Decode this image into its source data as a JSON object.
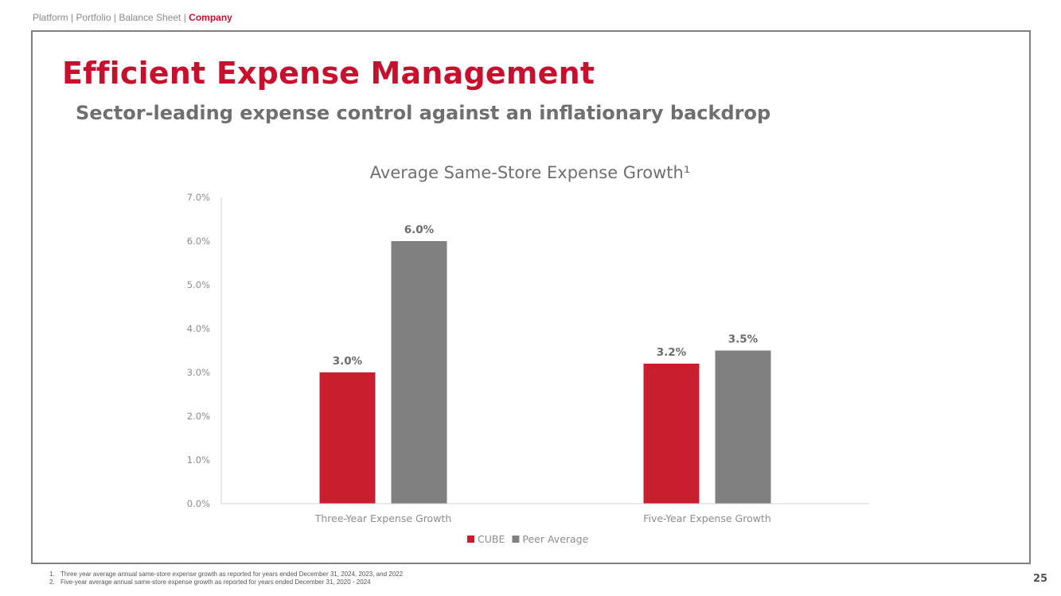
{
  "breadcrumb": {
    "items": [
      "Platform",
      "Portfolio",
      "Balance Sheet",
      "Company"
    ],
    "active_index": 3
  },
  "slide": {
    "title": "Efficient Expense Management",
    "subtitle": "Sector-leading expense control against an inflationary backdrop",
    "page_number": "25"
  },
  "footnotes": [
    {
      "num": "1.",
      "text": "Three year average annual same-store expense growth as reported for years ended December 31, 2024, 2023, and 2022"
    },
    {
      "num": "2.",
      "text": "Five-year average annual same-store expense growth as reported for years ended December 31, 2020 - 2024"
    }
  ],
  "colors": {
    "accent": "#c8102e",
    "cube": "#c81e2e",
    "peer": "#808080",
    "frame": "#7f7f7f",
    "text_gray": "#6b6b6b"
  },
  "chart_data": {
    "type": "bar",
    "title": "Average Same-Store Expense Growth¹",
    "categories": [
      "Three-Year Expense Growth",
      "Five-Year Expense Growth"
    ],
    "series": [
      {
        "name": "CUBE",
        "values": [
          3.0,
          3.2
        ],
        "labels": [
          "3.0%",
          "3.2%"
        ],
        "color": "#c81e2e"
      },
      {
        "name": "Peer Average",
        "values": [
          6.0,
          3.5
        ],
        "labels": [
          "6.0%",
          "3.5%"
        ],
        "color": "#808080"
      }
    ],
    "yticks": [
      "0.0%",
      "1.0%",
      "2.0%",
      "3.0%",
      "4.0%",
      "5.0%",
      "6.0%",
      "7.0%"
    ],
    "ylim": [
      0,
      7
    ],
    "grid": false,
    "legend_position": "bottom"
  }
}
